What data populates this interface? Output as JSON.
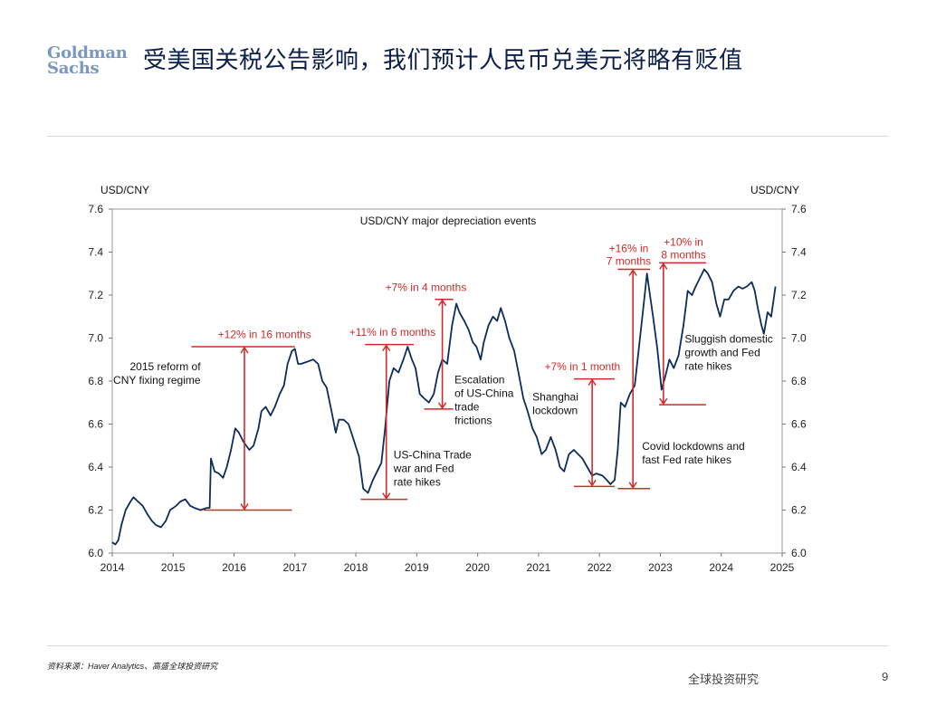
{
  "header": {
    "logo_line1": "Goldman",
    "logo_line2": "Sachs",
    "title": "受美国关税公告影响，我们预计人民币兑美元将略有贬值"
  },
  "footer": {
    "source": "资料来源：Haver Analytics、高盛全球投资研究",
    "brand": "全球投资研究",
    "page": "9"
  },
  "colors": {
    "line": "#0d2c5c",
    "annotation": "#d22a2a",
    "axis": "#555555",
    "title": "#0b1f4a"
  },
  "chart_data": {
    "type": "line",
    "title": "USD/CNY major depreciation events",
    "ylabel_left": "USD/CNY",
    "ylabel_right": "USD/CNY",
    "xlim": [
      2014,
      2025
    ],
    "ylim": [
      6.0,
      7.6
    ],
    "xticks": [
      "2014",
      "2015",
      "2016",
      "2017",
      "2018",
      "2019",
      "2020",
      "2021",
      "2022",
      "2023",
      "2024",
      "2025"
    ],
    "yticks": [
      "6.0",
      "6.2",
      "6.4",
      "6.6",
      "6.8",
      "7.0",
      "7.2",
      "7.4",
      "7.6"
    ],
    "grid": false,
    "series": [
      {
        "name": "USD/CNY",
        "points": [
          [
            2014.0,
            6.05
          ],
          [
            2014.05,
            6.04
          ],
          [
            2014.1,
            6.06
          ],
          [
            2014.15,
            6.13
          ],
          [
            2014.22,
            6.2
          ],
          [
            2014.3,
            6.24
          ],
          [
            2014.35,
            6.26
          ],
          [
            2014.42,
            6.24
          ],
          [
            2014.5,
            6.22
          ],
          [
            2014.58,
            6.18
          ],
          [
            2014.65,
            6.15
          ],
          [
            2014.72,
            6.13
          ],
          [
            2014.8,
            6.12
          ],
          [
            2014.88,
            6.15
          ],
          [
            2014.95,
            6.2
          ],
          [
            2015.05,
            6.22
          ],
          [
            2015.12,
            6.24
          ],
          [
            2015.2,
            6.25
          ],
          [
            2015.28,
            6.22
          ],
          [
            2015.35,
            6.21
          ],
          [
            2015.45,
            6.2
          ],
          [
            2015.55,
            6.21
          ],
          [
            2015.6,
            6.21
          ],
          [
            2015.62,
            6.44
          ],
          [
            2015.68,
            6.38
          ],
          [
            2015.75,
            6.37
          ],
          [
            2015.82,
            6.35
          ],
          [
            2015.88,
            6.4
          ],
          [
            2015.95,
            6.48
          ],
          [
            2016.02,
            6.58
          ],
          [
            2016.08,
            6.56
          ],
          [
            2016.15,
            6.52
          ],
          [
            2016.25,
            6.48
          ],
          [
            2016.32,
            6.5
          ],
          [
            2016.4,
            6.58
          ],
          [
            2016.45,
            6.66
          ],
          [
            2016.52,
            6.68
          ],
          [
            2016.6,
            6.64
          ],
          [
            2016.67,
            6.68
          ],
          [
            2016.75,
            6.74
          ],
          [
            2016.82,
            6.78
          ],
          [
            2016.88,
            6.88
          ],
          [
            2016.95,
            6.94
          ],
          [
            2017.0,
            6.95
          ],
          [
            2017.05,
            6.88
          ],
          [
            2017.1,
            6.88
          ],
          [
            2017.2,
            6.89
          ],
          [
            2017.3,
            6.9
          ],
          [
            2017.38,
            6.88
          ],
          [
            2017.45,
            6.8
          ],
          [
            2017.52,
            6.77
          ],
          [
            2017.6,
            6.66
          ],
          [
            2017.67,
            6.56
          ],
          [
            2017.72,
            6.62
          ],
          [
            2017.8,
            6.62
          ],
          [
            2017.88,
            6.6
          ],
          [
            2017.95,
            6.54
          ],
          [
            2018.05,
            6.45
          ],
          [
            2018.12,
            6.3
          ],
          [
            2018.2,
            6.28
          ],
          [
            2018.28,
            6.34
          ],
          [
            2018.35,
            6.38
          ],
          [
            2018.42,
            6.42
          ],
          [
            2018.48,
            6.58
          ],
          [
            2018.55,
            6.8
          ],
          [
            2018.62,
            6.86
          ],
          [
            2018.7,
            6.84
          ],
          [
            2018.78,
            6.9
          ],
          [
            2018.85,
            6.96
          ],
          [
            2018.92,
            6.9
          ],
          [
            2018.98,
            6.86
          ],
          [
            2019.05,
            6.74
          ],
          [
            2019.12,
            6.72
          ],
          [
            2019.2,
            6.7
          ],
          [
            2019.28,
            6.74
          ],
          [
            2019.35,
            6.84
          ],
          [
            2019.42,
            6.9
          ],
          [
            2019.5,
            6.88
          ],
          [
            2019.58,
            7.06
          ],
          [
            2019.65,
            7.16
          ],
          [
            2019.7,
            7.12
          ],
          [
            2019.78,
            7.08
          ],
          [
            2019.85,
            7.04
          ],
          [
            2019.92,
            6.98
          ],
          [
            2019.98,
            6.96
          ],
          [
            2020.05,
            6.9
          ],
          [
            2020.1,
            6.98
          ],
          [
            2020.18,
            7.06
          ],
          [
            2020.25,
            7.1
          ],
          [
            2020.32,
            7.08
          ],
          [
            2020.38,
            7.14
          ],
          [
            2020.45,
            7.08
          ],
          [
            2020.52,
            7.0
          ],
          [
            2020.6,
            6.94
          ],
          [
            2020.67,
            6.84
          ],
          [
            2020.75,
            6.72
          ],
          [
            2020.82,
            6.66
          ],
          [
            2020.9,
            6.58
          ],
          [
            2020.97,
            6.54
          ],
          [
            2021.05,
            6.46
          ],
          [
            2021.12,
            6.48
          ],
          [
            2021.2,
            6.54
          ],
          [
            2021.28,
            6.48
          ],
          [
            2021.35,
            6.4
          ],
          [
            2021.42,
            6.38
          ],
          [
            2021.5,
            6.46
          ],
          [
            2021.58,
            6.48
          ],
          [
            2021.65,
            6.46
          ],
          [
            2021.72,
            6.44
          ],
          [
            2021.8,
            6.4
          ],
          [
            2021.88,
            6.36
          ],
          [
            2021.95,
            6.37
          ],
          [
            2022.05,
            6.36
          ],
          [
            2022.12,
            6.34
          ],
          [
            2022.18,
            6.32
          ],
          [
            2022.25,
            6.34
          ],
          [
            2022.3,
            6.48
          ],
          [
            2022.35,
            6.7
          ],
          [
            2022.42,
            6.68
          ],
          [
            2022.5,
            6.74
          ],
          [
            2022.58,
            6.78
          ],
          [
            2022.65,
            6.96
          ],
          [
            2022.72,
            7.14
          ],
          [
            2022.78,
            7.3
          ],
          [
            2022.82,
            7.22
          ],
          [
            2022.88,
            7.1
          ],
          [
            2022.95,
            6.95
          ],
          [
            2023.02,
            6.76
          ],
          [
            2023.08,
            6.82
          ],
          [
            2023.15,
            6.9
          ],
          [
            2023.22,
            6.86
          ],
          [
            2023.3,
            6.92
          ],
          [
            2023.38,
            7.06
          ],
          [
            2023.45,
            7.22
          ],
          [
            2023.52,
            7.2
          ],
          [
            2023.58,
            7.24
          ],
          [
            2023.65,
            7.28
          ],
          [
            2023.72,
            7.32
          ],
          [
            2023.78,
            7.3
          ],
          [
            2023.85,
            7.26
          ],
          [
            2023.92,
            7.16
          ],
          [
            2023.98,
            7.1
          ],
          [
            2024.05,
            7.18
          ],
          [
            2024.12,
            7.18
          ],
          [
            2024.2,
            7.22
          ],
          [
            2024.28,
            7.24
          ],
          [
            2024.35,
            7.23
          ],
          [
            2024.42,
            7.24
          ],
          [
            2024.5,
            7.26
          ],
          [
            2024.55,
            7.22
          ],
          [
            2024.6,
            7.14
          ],
          [
            2024.66,
            7.06
          ],
          [
            2024.7,
            7.02
          ],
          [
            2024.76,
            7.12
          ],
          [
            2024.82,
            7.1
          ],
          [
            2024.86,
            7.18
          ],
          [
            2024.89,
            7.24
          ]
        ]
      }
    ],
    "annotations": [
      {
        "label": "+12% in 16 months",
        "x": 2016.17,
        "from": 6.2,
        "to": 6.96,
        "cap_low": [
          2015.5,
          2016.95
        ],
        "cap_high": [
          2015.3,
          2017.0
        ],
        "label_x": 2016.5,
        "label_y": 7.0
      },
      {
        "label": "+11% in 6 months",
        "x": 2018.5,
        "from": 6.25,
        "to": 6.97,
        "cap_low": [
          2018.08,
          2018.85
        ],
        "cap_high": [
          2018.15,
          2018.95
        ],
        "label_x": 2018.6,
        "label_y": 7.01
      },
      {
        "label": "+7% in 4 months",
        "x": 2019.42,
        "from": 6.67,
        "to": 7.18,
        "cap_low": [
          2019.12,
          2019.6
        ],
        "cap_high": [
          2019.3,
          2019.6
        ],
        "label_x": 2019.15,
        "label_y": 7.22
      },
      {
        "label": "+7% in 1 month",
        "x": 2021.88,
        "from": 6.31,
        "to": 6.81,
        "cap_low": [
          2021.58,
          2022.25
        ],
        "cap_high": [
          2021.58,
          2022.25
        ],
        "label_x": 2021.72,
        "label_y": 6.85
      },
      {
        "label_lines": [
          "+16% in",
          "7 months"
        ],
        "x": 2022.55,
        "from": 6.3,
        "to": 7.32,
        "cap_low": [
          2022.3,
          2022.83
        ],
        "cap_high": [
          2022.3,
          2022.83
        ],
        "label_x": 2022.48,
        "label_y": 7.4
      },
      {
        "label_lines": [
          "+10% in",
          "8 months"
        ],
        "x": 2023.05,
        "from": 6.69,
        "to": 7.35,
        "cap_low": [
          2022.98,
          2023.75
        ],
        "cap_high": [
          2022.98,
          2023.75
        ],
        "label_x": 2023.38,
        "label_y": 7.43
      }
    ],
    "notes": [
      {
        "lines": [
          "2015 reform of",
          "CNY fixing regime"
        ],
        "x": 2015.45,
        "y": 6.85,
        "align": "end"
      },
      {
        "lines": [
          "US-China Trade",
          "war and Fed",
          "rate hikes"
        ],
        "x": 2018.62,
        "y": 6.44,
        "align": "start"
      },
      {
        "lines": [
          "Escalation",
          "of US-China",
          "trade",
          "frictions"
        ],
        "x": 2019.62,
        "y": 6.79,
        "align": "start"
      },
      {
        "lines": [
          "Shanghai",
          "lockdown"
        ],
        "x": 2020.9,
        "y": 6.71,
        "align": "start"
      },
      {
        "lines": [
          "Covid lockdowns and",
          "fast Fed rate hikes"
        ],
        "x": 2022.7,
        "y": 6.48,
        "align": "start"
      },
      {
        "lines": [
          "Sluggish domestic",
          "growth and Fed",
          "rate hikes"
        ],
        "x": 2023.4,
        "y": 6.98,
        "align": "start"
      }
    ]
  }
}
